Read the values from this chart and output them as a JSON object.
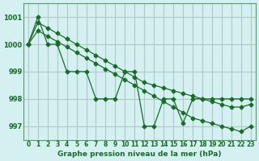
{
  "title": "Graphe pression niveau de la mer (hPa)",
  "background_color": "#d4f0f0",
  "grid_color": "#b0c8c8",
  "line_color": "#1a6b2a",
  "x_values": [
    0,
    1,
    2,
    3,
    4,
    5,
    6,
    7,
    8,
    9,
    10,
    11,
    12,
    13,
    14,
    15,
    16,
    17,
    18,
    19,
    20,
    21,
    22,
    23
  ],
  "ylim": [
    996.5,
    1001.5
  ],
  "y_ticks": [
    997,
    998,
    999,
    1000,
    1001
  ],
  "line_zigzag": [
    1000.0,
    1001.0,
    1000.0,
    1000.0,
    999.0,
    999.0,
    999.0,
    998.0,
    998.0,
    998.0,
    999.0,
    999.0,
    997.0,
    997.0,
    998.0,
    998.0,
    997.1,
    998.0,
    998.0,
    998.0,
    998.0,
    998.0,
    998.0,
    998.0
  ],
  "line_upper": [
    1000.0,
    1000.8,
    1000.6,
    1000.4,
    1000.2,
    1000.0,
    999.8,
    999.6,
    999.4,
    999.2,
    999.0,
    998.8,
    998.6,
    998.5,
    998.4,
    998.3,
    998.2,
    998.1,
    998.0,
    997.9,
    997.8,
    997.7,
    997.7,
    997.8
  ],
  "line_lower": [
    1000.0,
    1000.5,
    1000.3,
    1000.1,
    999.9,
    999.7,
    999.5,
    999.3,
    999.1,
    998.9,
    998.7,
    998.5,
    998.3,
    998.1,
    997.9,
    997.7,
    997.5,
    997.3,
    997.2,
    997.1,
    997.0,
    996.9,
    996.8,
    997.0
  ]
}
